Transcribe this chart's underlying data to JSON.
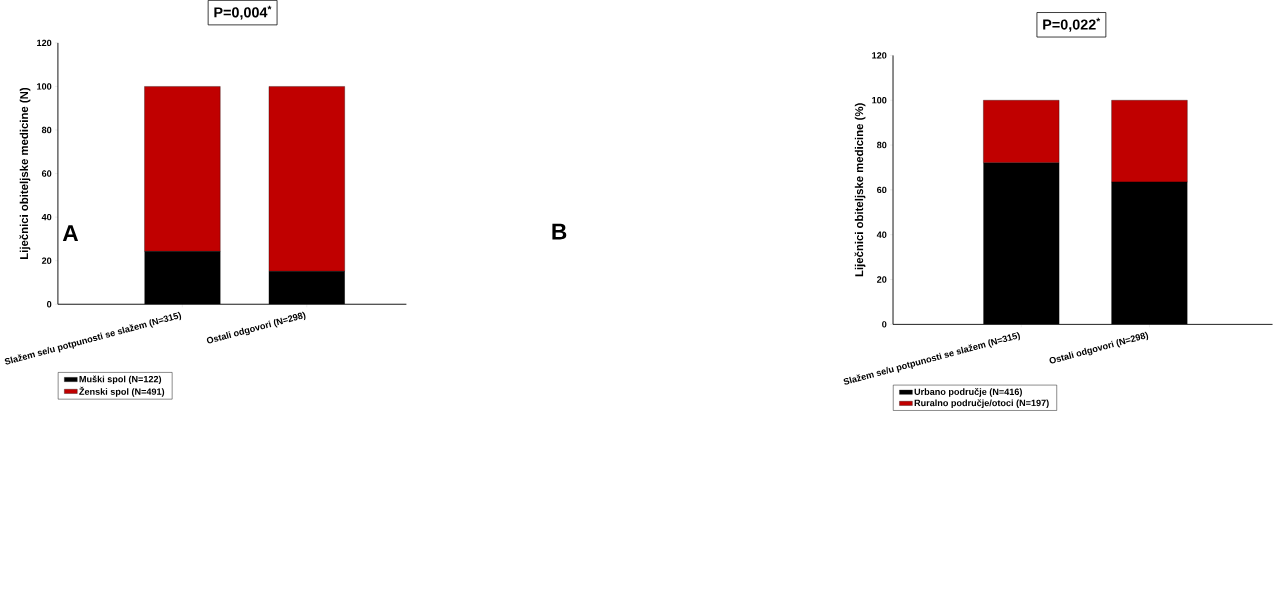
{
  "chart_data": [
    {
      "type": "bar",
      "stacked": true,
      "title": "P=0,004$^{*}$",
      "annotations": [
        "A"
      ],
      "ylabel": "Liječnici obiteljske medicine (N)",
      "categories": [
        "Slažem se/u potpunosti se slažem (N=315)",
        "Ostali odgovori (N=298)"
      ],
      "series": [
        {
          "name": "Muški spol (N=122)",
          "color": "#000000",
          "values": [
            24.3,
            15.1
          ]
        },
        {
          "name": "Ženski spol (N=491)",
          "color": "#c00000",
          "values": [
            75.7,
            84.9
          ]
        }
      ],
      "ylim": [
        0,
        120
      ],
      "yticks": [
        0,
        20,
        40,
        60,
        80,
        100,
        120
      ],
      "legend": "bottom left",
      "grid": false
    },
    {
      "type": "bar",
      "stacked": true,
      "title": "P=0,022$^{*}$",
      "annotations": [
        "B"
      ],
      "ylabel": "Liječnici obiteljske medicine (%)",
      "categories": [
        "Slažem se/u potpunosti se slažem (N=315)",
        "Ostali odgovori (N=298)"
      ],
      "series": [
        {
          "name": "Urbano područje (N=416)",
          "color": "#000000",
          "values": [
            72.1,
            63.5
          ]
        },
        {
          "name": "Ruralno područje/otoci (N=197)",
          "color": "#c00000",
          "values": [
            27.9,
            36.5
          ]
        }
      ],
      "ylim": [
        0,
        120
      ],
      "yticks": [
        0,
        20,
        40,
        60,
        80,
        100,
        120
      ],
      "legend": "bottom left",
      "grid": false
    }
  ]
}
